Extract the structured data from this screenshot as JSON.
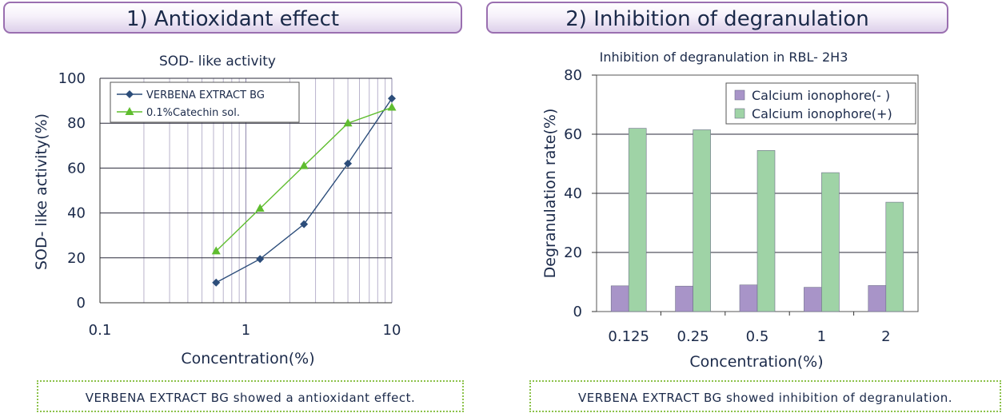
{
  "panels": {
    "left_title": "1) Antioxidant effect",
    "right_title": "2) Inhibition of degranulation",
    "left_note": "VERBENA EXTRACT BG showed a antioxidant effect.",
    "right_note": "VERBENA EXTRACT BG showed inhibition of degranulation."
  },
  "chart_data": [
    {
      "type": "line",
      "title": "SOD- like activity",
      "xlabel": "Concentration(%)",
      "ylabel": "SOD- like activity(%)",
      "xscale": "log",
      "xlim": [
        0.1,
        10
      ],
      "ylim": [
        0,
        100
      ],
      "xticks": [
        0.1,
        1,
        10
      ],
      "xtick_labels": [
        "0.1",
        "1",
        "10"
      ],
      "yticks": [
        0,
        20,
        40,
        60,
        80,
        100
      ],
      "legend_position": "top-left",
      "grid": true,
      "series": [
        {
          "name": "VERBENA EXTRACT BG",
          "color": "#2c4d7a",
          "marker": "diamond",
          "x": [
            0.625,
            1.25,
            2.5,
            5,
            10
          ],
          "y": [
            9,
            19.5,
            35,
            62,
            91
          ]
        },
        {
          "name": "0.1%Catechin sol.",
          "color": "#5fbd2f",
          "marker": "triangle",
          "x": [
            0.625,
            1.25,
            2.5,
            5,
            10
          ],
          "y": [
            23,
            42,
            61,
            80,
            87
          ]
        }
      ]
    },
    {
      "type": "bar",
      "title": "Inhibition of degranulation in RBL- 2H3",
      "xlabel": "Concentration(%)",
      "ylabel": "Degranulation rate(%)",
      "ylim": [
        0,
        80
      ],
      "yticks": [
        0,
        20,
        40,
        60,
        80
      ],
      "categories": [
        "0.125",
        "0.25",
        "0.5",
        "1",
        "2"
      ],
      "legend_position": "top-right",
      "grid": true,
      "series": [
        {
          "name": "Calcium ionophore(- )",
          "color": "#a894c8",
          "values": [
            8.7,
            8.6,
            9.0,
            8.2,
            8.8
          ]
        },
        {
          "name": "Calcium ionophore(+)",
          "color": "#9fd3a6",
          "values": [
            62,
            61.5,
            54.5,
            47,
            37
          ]
        }
      ]
    }
  ]
}
